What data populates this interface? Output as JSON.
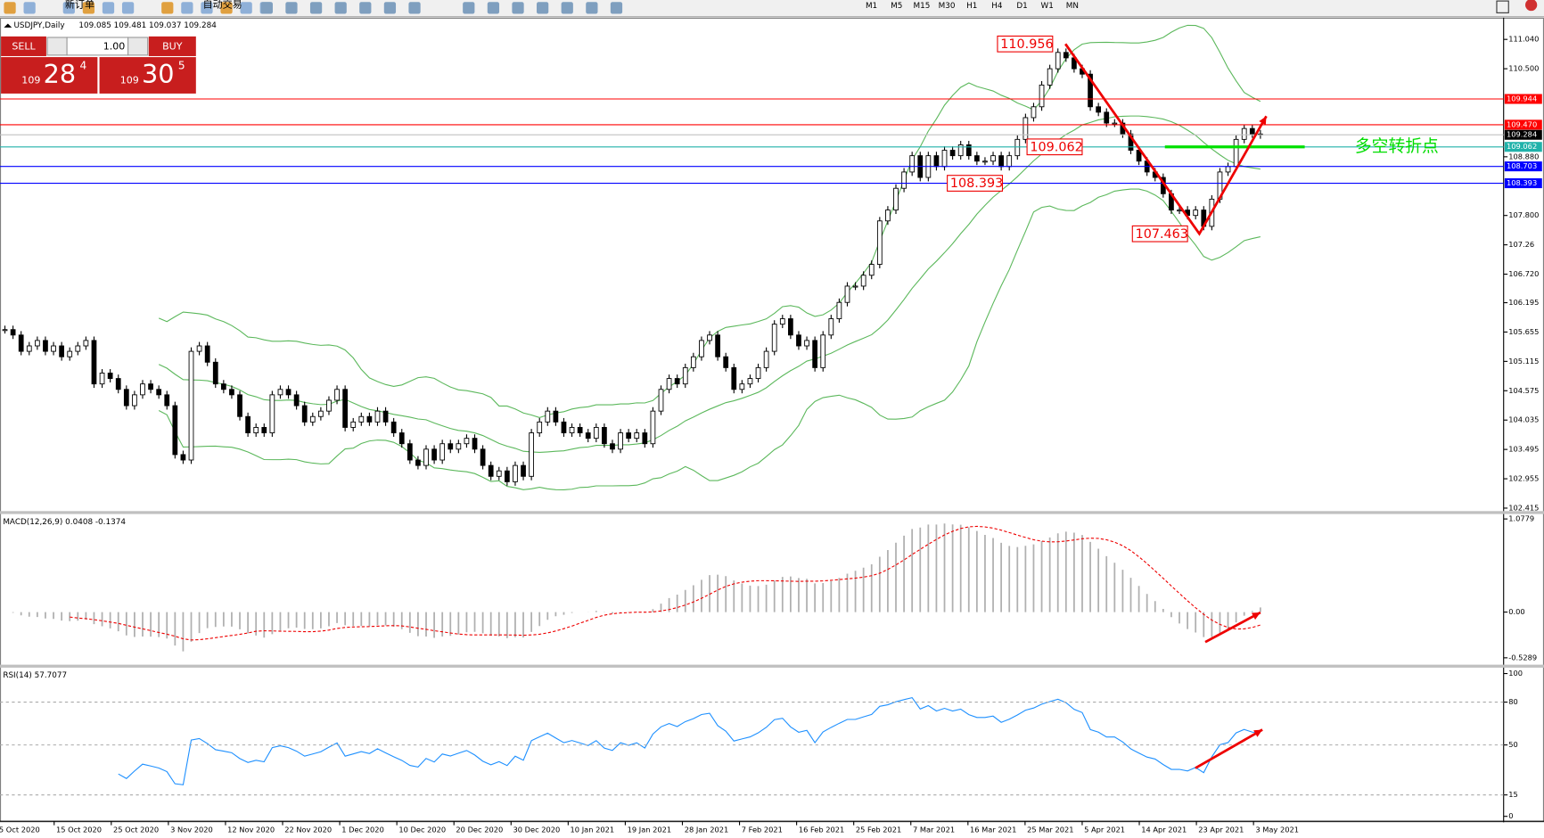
{
  "toolbar": {
    "buttons": [
      "新订单",
      "自动交易"
    ],
    "timeframes": [
      "M1",
      "M5",
      "M15",
      "M30",
      "H1",
      "H4",
      "D1",
      "W1",
      "MN"
    ]
  },
  "trade_panel": {
    "sell": "SELL",
    "buy": "BUY",
    "lots": "1.00",
    "sell_price": [
      "109",
      "28",
      "4"
    ],
    "buy_price": [
      "109",
      "30",
      "5"
    ]
  },
  "chart_data": {
    "type": "candlestick",
    "symbol": "USDJPY,Daily",
    "ohlc": "109.085 109.481 109.037 109.284",
    "date_labels": [
      "5 Oct 2020",
      "15 Oct 2020",
      "25 Oct 2020",
      "3 Nov 2020",
      "12 Nov 2020",
      "22 Nov 2020",
      "1 Dec 2020",
      "10 Dec 2020",
      "20 Dec 2020",
      "30 Dec 2020",
      "10 Jan 2021",
      "19 Jan 2021",
      "28 Jan 2021",
      "7 Feb 2021",
      "16 Feb 2021",
      "25 Feb 2021",
      "7 Mar 2021",
      "16 Mar 2021",
      "25 Mar 2021",
      "5 Apr 2021",
      "14 Apr 2021",
      "23 Apr 2021",
      "3 May 2021"
    ],
    "close": [
      105.7,
      105.6,
      105.3,
      105.4,
      105.5,
      105.3,
      105.4,
      105.2,
      105.3,
      105.4,
      105.5,
      104.7,
      104.9,
      104.8,
      104.6,
      104.3,
      104.5,
      104.7,
      104.6,
      104.5,
      104.3,
      103.4,
      103.3,
      105.3,
      105.4,
      105.1,
      104.7,
      104.6,
      104.5,
      104.1,
      103.8,
      103.9,
      103.8,
      104.5,
      104.6,
      104.5,
      104.3,
      104.0,
      104.1,
      104.2,
      104.4,
      104.6,
      103.9,
      104.0,
      104.1,
      104.0,
      104.2,
      104.0,
      103.8,
      103.6,
      103.3,
      103.2,
      103.5,
      103.3,
      103.6,
      103.5,
      103.6,
      103.7,
      103.5,
      103.2,
      103.0,
      103.1,
      102.9,
      103.2,
      103.0,
      103.8,
      104.0,
      104.2,
      104.0,
      103.8,
      103.9,
      103.8,
      103.7,
      103.9,
      103.6,
      103.5,
      103.8,
      103.7,
      103.8,
      103.6,
      104.2,
      104.6,
      104.8,
      104.7,
      105.0,
      105.2,
      105.5,
      105.6,
      105.2,
      105.0,
      104.6,
      104.7,
      104.8,
      105.0,
      105.3,
      105.8,
      105.9,
      105.6,
      105.4,
      105.5,
      105.0,
      105.6,
      105.9,
      106.2,
      106.5,
      106.5,
      106.7,
      106.9,
      107.7,
      107.9,
      108.3,
      108.6,
      108.9,
      108.5,
      108.9,
      108.7,
      109.0,
      108.9,
      109.1,
      108.9,
      108.8,
      108.8,
      108.9,
      108.7,
      108.9,
      109.2,
      109.6,
      109.8,
      110.2,
      110.5,
      110.8,
      110.7,
      110.5,
      110.4,
      109.8,
      109.7,
      109.5,
      109.5,
      109.3,
      109.0,
      108.8,
      108.6,
      108.5,
      108.2,
      107.9,
      107.9,
      107.8,
      107.9,
      107.6,
      108.1,
      108.6,
      108.7,
      109.2,
      109.4,
      109.3,
      109.284
    ],
    "color": "#000000",
    "band_color": "#5cb85c",
    "ylim": [
      102.415,
      111.04
    ],
    "yticks": [
      {
        "value": 111.04,
        "label": "111.040"
      },
      {
        "value": 110.5,
        "label": "110.500"
      },
      {
        "value": 108.88,
        "label": "108.880"
      },
      {
        "value": 107.8,
        "label": "107.800"
      },
      107.26,
      {
        "value": 106.72,
        "label": "106.720"
      },
      106.195,
      105.655,
      105.115,
      104.575,
      104.035,
      103.495,
      102.955,
      102.415
    ],
    "levels": [
      {
        "value": 109.944,
        "label": "109.944",
        "color": "#ff0000",
        "line_color": "#ff0000"
      },
      {
        "value": 109.47,
        "label": "109.470",
        "color": "#ff0000",
        "line_color": "#ff0000"
      },
      {
        "value": 109.284,
        "label": "109.284",
        "color": "#000000",
        "line_color": "#c0c0c0"
      },
      {
        "value": 109.062,
        "label": "109.062",
        "color": "#20b2aa",
        "line_color": "#20b2aa"
      },
      {
        "value": 108.703,
        "label": "108.703",
        "color": "#0000ff",
        "line_color": "#0000ff"
      },
      {
        "value": 108.393,
        "label": "108.393",
        "color": "#0000ff",
        "line_color": "#0000ff"
      }
    ],
    "annotations": [
      110.956,
      109.062,
      108.393,
      107.463
    ],
    "pivot_note": "多空转折点"
  },
  "macd": {
    "title": "MACD(12,26,9) 0.0408 -0.1374",
    "ylim": [
      -0.5289,
      1.0779
    ],
    "yticks": [
      1.0779,
      {
        "value": 0,
        "label": "0.00"
      },
      -0.5289
    ]
  },
  "rsi": {
    "title": "RSI(14) 57.7077",
    "ylim": [
      0,
      100
    ],
    "yticks": [
      100,
      80,
      50,
      15,
      0
    ],
    "color": "#1e90ff"
  }
}
